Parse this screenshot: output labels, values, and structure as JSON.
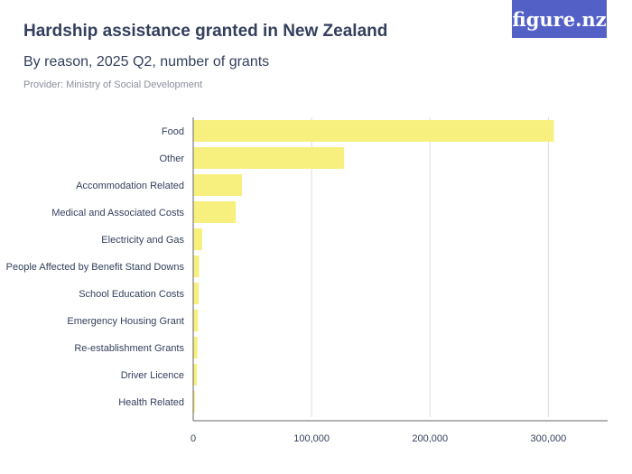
{
  "header": {
    "title": "Hardship assistance granted in New Zealand",
    "subtitle": "By reason, 2025 Q2, number of grants",
    "provider": "Provider: Ministry of Social Development",
    "logo": "figure.nz"
  },
  "chart_data": {
    "type": "bar",
    "orientation": "horizontal",
    "categories": [
      "Food",
      "Other",
      "Accommodation Related",
      "Medical and Associated Costs",
      "Electricity and Gas",
      "People Affected by Benefit Stand Downs",
      "School Education Costs",
      "Emergency Housing Grant",
      "Re-establishment Grants",
      "Driver Licence",
      "Health Related"
    ],
    "values": [
      304600,
      127500,
      41200,
      35900,
      7600,
      5000,
      4600,
      4000,
      3600,
      3200,
      1500
    ],
    "xlim": [
      0,
      350000
    ],
    "ticks": [
      0,
      100000,
      200000,
      300000
    ],
    "tick_labels": [
      "0",
      "100,000",
      "200,000",
      "300,000"
    ],
    "grid": true,
    "colors": {
      "bar": "#f8f07e",
      "grid": "#dddddd",
      "axis": "#666666"
    }
  }
}
